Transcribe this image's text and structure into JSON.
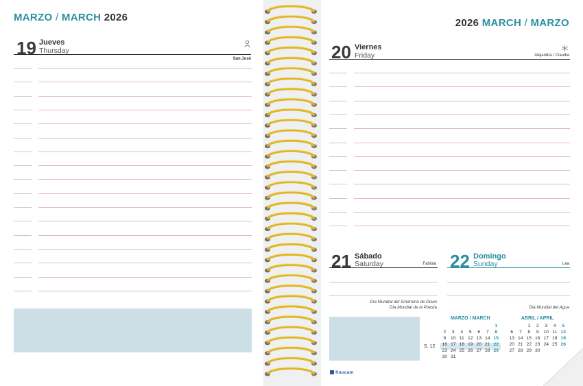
{
  "left_page": {
    "header": {
      "es": "MARZO",
      "sep": "/",
      "en": "MARCH",
      "year": "2026"
    },
    "day": {
      "number": "19",
      "name_es": "Jueves",
      "name_en": "Thursday",
      "saint": "San José",
      "icon": "person-icon"
    }
  },
  "right_page": {
    "header": {
      "year": "2026",
      "en": "MARCH",
      "sep": "/",
      "es": "MARZO"
    },
    "day_main": {
      "number": "20",
      "name_es": "Viernes",
      "name_en": "Friday",
      "saint": "Alejandra / Claudia",
      "icon": "snowflake-icon"
    },
    "day_sat": {
      "number": "21",
      "name_es": "Sábado",
      "name_en": "Saturday",
      "saint": "Fabiola",
      "events": [
        "Día Mundial del Síndrome de Down",
        "Día Mundial de la Poesía"
      ]
    },
    "day_sun": {
      "number": "22",
      "name_es": "Domingo",
      "name_en": "Sunday",
      "saint": "Lea",
      "events": [
        "Día Mundial del Agua"
      ]
    },
    "brand": "finocam"
  },
  "mini_march": {
    "title": "MARZO / MARCH",
    "week_label": "S. 12",
    "rows": [
      [
        "",
        "",
        "",
        "",
        "",
        "",
        "1"
      ],
      [
        "2",
        "3",
        "4",
        "5",
        "6",
        "7",
        "8"
      ],
      [
        "9",
        "10",
        "11",
        "12",
        "13",
        "14",
        "15"
      ],
      [
        "16",
        "17",
        "18",
        "19",
        "20",
        "21",
        "22"
      ],
      [
        "23",
        "24",
        "25",
        "26",
        "27",
        "28",
        "29"
      ],
      [
        "30",
        "31",
        "",
        "",
        "",
        "",
        ""
      ]
    ]
  },
  "mini_april": {
    "title": "ABRIL / APRIL",
    "rows": [
      [
        "",
        "",
        "1",
        "2",
        "3",
        "4",
        "5"
      ],
      [
        "6",
        "7",
        "8",
        "9",
        "10",
        "11",
        "12"
      ],
      [
        "13",
        "14",
        "15",
        "16",
        "17",
        "18",
        "19"
      ],
      [
        "20",
        "21",
        "22",
        "23",
        "24",
        "25",
        "26"
      ],
      [
        "27",
        "28",
        "29",
        "30",
        "",
        "",
        ""
      ]
    ]
  },
  "colors": {
    "accent": "#2a8fa0",
    "note_box": "#cddfe6",
    "spiral": "#e0b52c",
    "ruling": "#e3b8bd"
  }
}
